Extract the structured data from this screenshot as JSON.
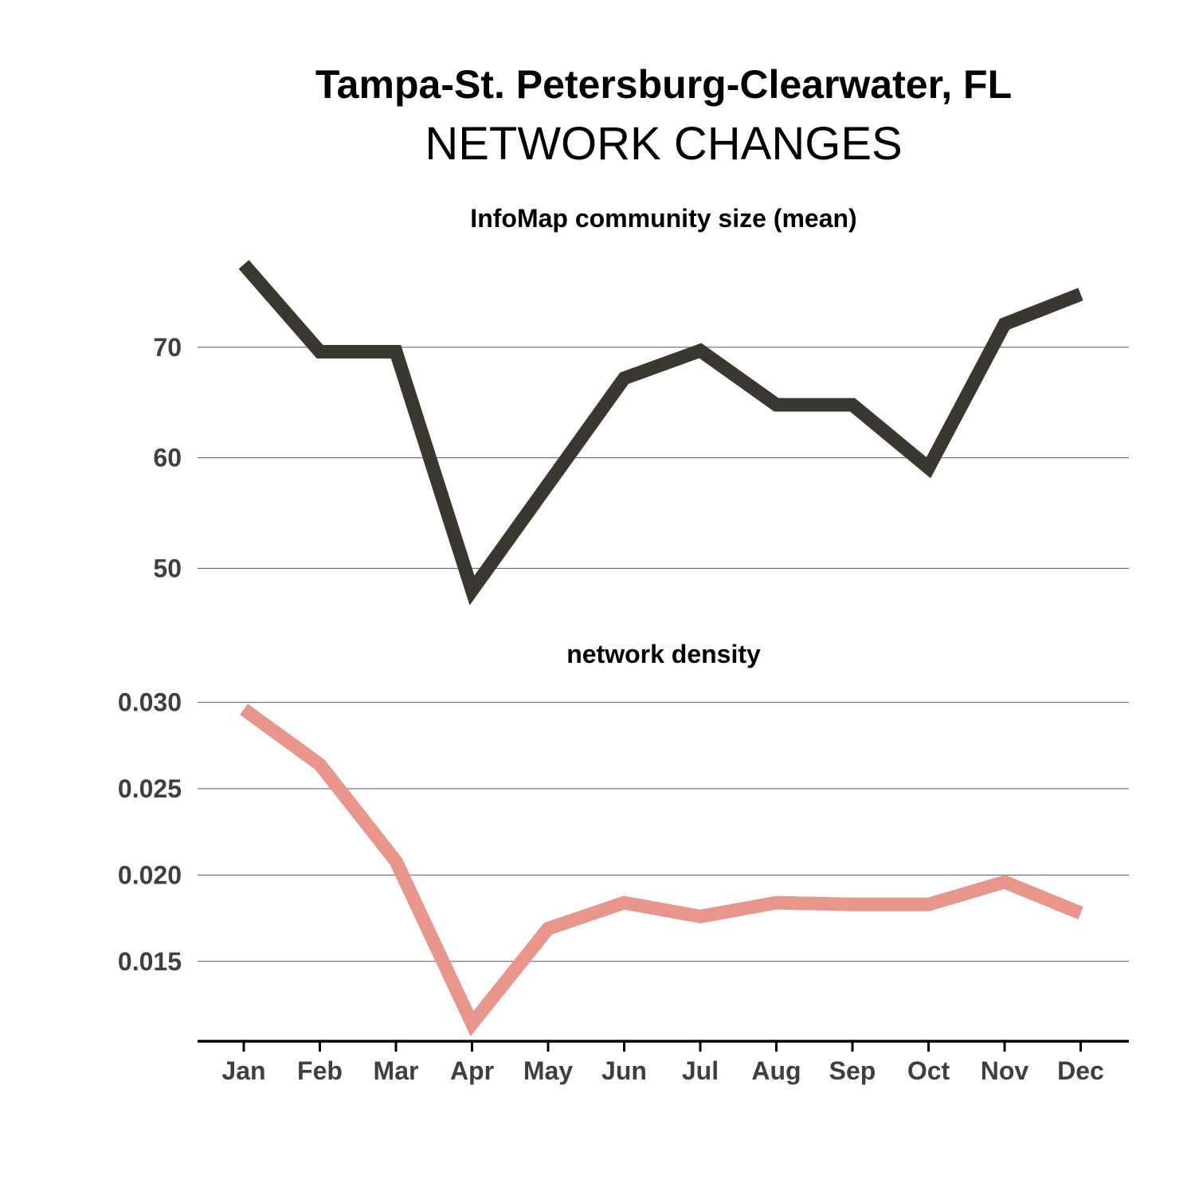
{
  "title": "Tampa-St. Petersburg-Clearwater, FL",
  "subtitle": "NETWORK CHANGES",
  "chart_data": [
    {
      "type": "line",
      "title": "InfoMap community size (mean)",
      "categories": [
        "Jan",
        "Feb",
        "Mar",
        "Apr",
        "May",
        "Jun",
        "Jul",
        "Aug",
        "Sep",
        "Oct",
        "Nov",
        "Dec"
      ],
      "series": [
        {
          "values": [
            77.5,
            69.6,
            69.6,
            48.0,
            57.6,
            67.2,
            69.7,
            64.8,
            64.8,
            59.1,
            72.1,
            74.8
          ],
          "color": "#3a3730"
        }
      ],
      "yticks": [
        50,
        60,
        70
      ],
      "ytick_labels": [
        "50",
        "60",
        "70"
      ],
      "ylim": [
        47.0,
        78.5
      ],
      "grid": true,
      "legend": "none"
    },
    {
      "type": "line",
      "title": "network density",
      "categories": [
        "Jan",
        "Feb",
        "Mar",
        "Apr",
        "May",
        "Jun",
        "Jul",
        "Aug",
        "Sep",
        "Oct",
        "Nov",
        "Dec"
      ],
      "series": [
        {
          "values": [
            0.0296,
            0.0264,
            0.0208,
            0.0114,
            0.0169,
            0.0184,
            0.0176,
            0.0184,
            0.0183,
            0.0183,
            0.0196,
            0.0178
          ],
          "color": "#e8968b"
        }
      ],
      "yticks": [
        0.015,
        0.02,
        0.025,
        0.03
      ],
      "ytick_labels": [
        "0.015",
        "0.020",
        "0.025",
        "0.030"
      ],
      "ylim": [
        0.0107,
        0.031
      ],
      "grid": true,
      "legend": "none"
    }
  ]
}
